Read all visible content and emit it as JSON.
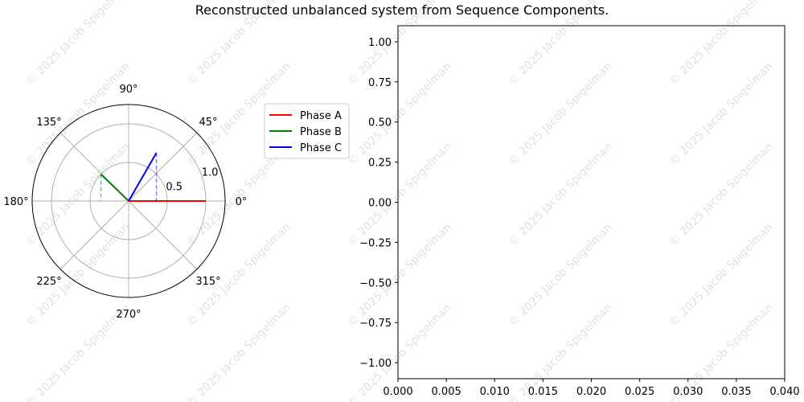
{
  "title": "Reconstructed unbalanced system from Sequence Components.",
  "watermark": "© 2025 Jacob Spigelman",
  "chart_data": [
    {
      "type": "polar",
      "angle_ticks": [
        "0°",
        "45°",
        "90°",
        "135°",
        "180°",
        "225°",
        "270°",
        "315°"
      ],
      "angle_tick_values": [
        0,
        45,
        90,
        135,
        180,
        225,
        270,
        315
      ],
      "radial_ticks": [
        "0.5",
        "1.0"
      ],
      "radial_tick_values": [
        0.5,
        1.0
      ],
      "rmax": 1.25,
      "grid": true,
      "legend": {
        "placement": "right",
        "entries": [
          "Phase A",
          "Phase B",
          "Phase C"
        ]
      },
      "series": [
        {
          "name": "Phase A",
          "color": "#ff0000",
          "magnitude": 1.0,
          "angle_deg": 0
        },
        {
          "name": "Phase B",
          "color": "#008000",
          "magnitude": 0.5,
          "angle_deg": 136
        },
        {
          "name": "Phase C",
          "color": "#0000ff",
          "magnitude": 0.72,
          "angle_deg": 60
        }
      ]
    },
    {
      "type": "line",
      "xlim": [
        0.0,
        0.04
      ],
      "ylim": [
        -1.1,
        1.1
      ],
      "xticks": [
        "0.000",
        "0.005",
        "0.010",
        "0.015",
        "0.020",
        "0.025",
        "0.030",
        "0.035",
        "0.040"
      ],
      "xtick_values": [
        0.0,
        0.005,
        0.01,
        0.015,
        0.02,
        0.025,
        0.03,
        0.035,
        0.04
      ],
      "yticks": [
        "1.00",
        "0.75",
        "0.50",
        "0.25",
        "0.00",
        "−0.25",
        "−0.50",
        "−0.75",
        "−1.00"
      ],
      "ytick_values": [
        1.0,
        0.75,
        0.5,
        0.25,
        0.0,
        -0.25,
        -0.5,
        -0.75,
        -1.0
      ],
      "grid": false,
      "series": []
    }
  ]
}
